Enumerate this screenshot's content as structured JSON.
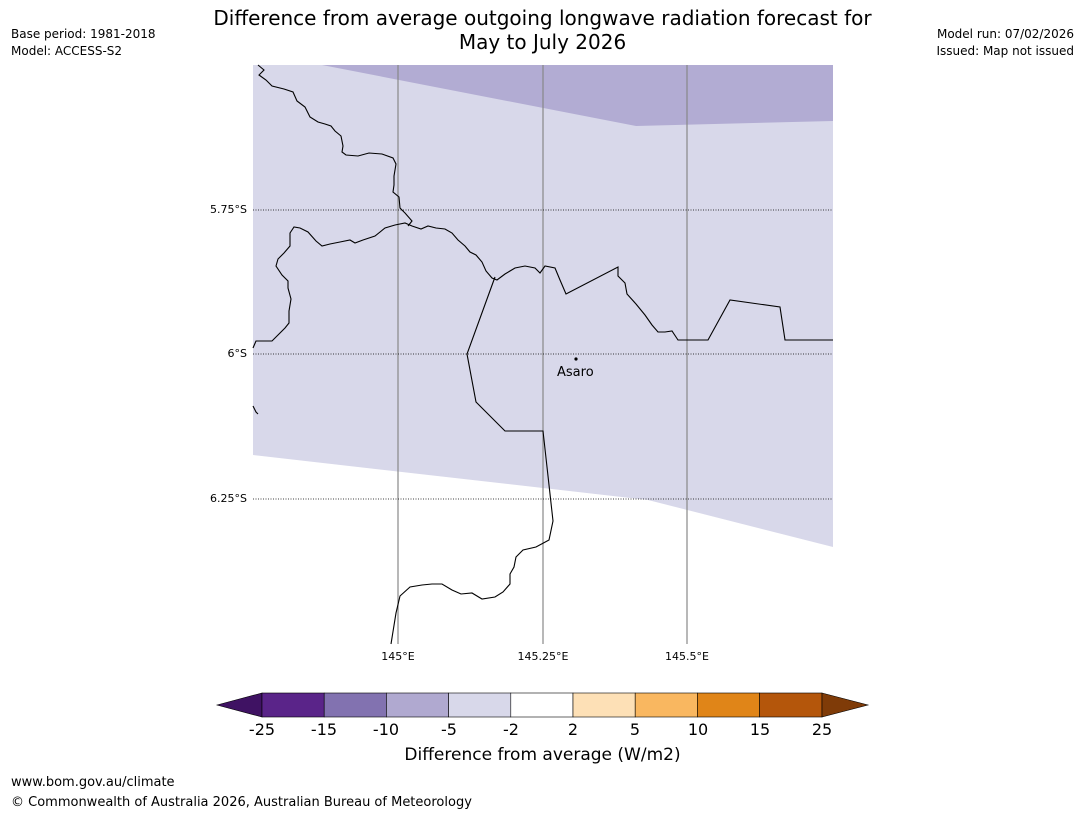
{
  "title_line1": "Difference from average outgoing longwave radiation forecast for",
  "title_line2": "May to July 2026",
  "meta_left": {
    "base_period": "Base period: 1981-2018",
    "model": "Model: ACCESS-S2"
  },
  "meta_right": {
    "model_run": "Model run: 07/02/2026",
    "issued": "Issued: Map not issued"
  },
  "lat_labels": [
    "5.75°S",
    "6°S",
    "6.25°S"
  ],
  "lon_labels": [
    "145°E",
    "145.25°E",
    "145.5°E"
  ],
  "place": {
    "name": "Asaro"
  },
  "colorbar": {
    "ticks": [
      "-25",
      "-15",
      "-10",
      "-5",
      "-2",
      "2",
      "5",
      "10",
      "15",
      "25"
    ],
    "colors": [
      "#3f1263",
      "#5a2489",
      "#8272b0",
      "#b0a9d0",
      "#d8d8ea",
      "#ffffff",
      "#fde0b6",
      "#f9b760",
      "#e08518",
      "#b4560b",
      "#7f3b08"
    ],
    "title": "Difference from average (W/m2)"
  },
  "footer": {
    "url": "www.bom.gov.au/climate",
    "copyright": "© Commonwealth of Australia 2026, Australian Bureau of Meteorology"
  }
}
